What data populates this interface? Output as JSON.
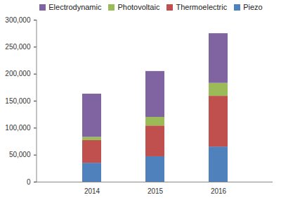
{
  "chart_data": {
    "type": "bar",
    "stacked": true,
    "legend": "top",
    "categories": [
      "2014",
      "2015",
      "2016"
    ],
    "series": [
      {
        "name": "Piezo",
        "color": "#4f81bd",
        "values": [
          35000,
          47000,
          65000
        ]
      },
      {
        "name": "Thermoelectric",
        "color": "#c0504d",
        "values": [
          42000,
          57000,
          94000
        ]
      },
      {
        "name": "Photovoltaic",
        "color": "#9bbb59",
        "values": [
          6000,
          16000,
          24000
        ]
      },
      {
        "name": "Electrodynamic",
        "color": "#8064a2",
        "values": [
          80000,
          85000,
          92000
        ]
      }
    ],
    "ylim": [
      0,
      300000
    ],
    "yticks": [
      0,
      {
        "value": 50000,
        "label": "50,000"
      },
      {
        "value": 100000,
        "label": "100,000"
      },
      {
        "value": 150000,
        "label": "150,000"
      },
      {
        "value": 200000,
        "label": "200,000"
      },
      {
        "value": 250000,
        "label": "250,000"
      },
      {
        "value": 300000,
        "label": "300,000"
      }
    ],
    "grid": false
  }
}
